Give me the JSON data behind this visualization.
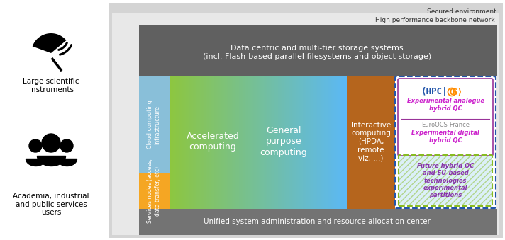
{
  "fig_width": 7.12,
  "fig_height": 3.39,
  "secured_env_text": "Secured environment",
  "backbone_text": "High performance backbone network",
  "storage_text": "Data centric and multi-tier storage systems\n(incl. Flash-based parallel filesystems and object storage)",
  "admin_text": "Unified system administration and resource allocation center",
  "cloud_text": "Cloud computing\ninfrastructure",
  "services_text": "Services nodes (access,\ndata transfer, etc)",
  "accel_text": "Accelerated\ncomputing",
  "general_text": "General\npurpose\ncomputing",
  "interactive_text": "Interactive\ncomputing\n(HPDA,\nremote\nviz, ...)",
  "hpcqs_sub1": "Experimental analogue\nhybrid QC",
  "hpcqs_sub2": "EuroQCS-France",
  "hpcqs_sub3": "Experimental digital\nhybrid QC",
  "future_text": "Future hybrid QC\nand EU-based\ntechnologies\nexperimental\npartitions",
  "icon_satellite_label": "Large scientific\ninstruments",
  "icon_people_label": "Academia, industrial\nand public services\nusers",
  "outer_gray": "#d4d4d4",
  "inner_gray": "#e8e8e8",
  "storage_gray": "#606060",
  "admin_gray": "#737373",
  "cloud_blue": "#89BFD9",
  "services_orange": "#F5A623",
  "interactive_brown": "#B5651D",
  "grad_green": [
    141,
    198,
    63
  ],
  "grad_blue": [
    91,
    184,
    245
  ],
  "hpcqs_blue": "#2255AA",
  "hpcqs_orange": "#FF8C00",
  "hpcqs_purple_border": "#993399",
  "future_green_border": "#88BB22",
  "future_purple": "#8833AA",
  "future_bg": "#DCF0F8",
  "pink_text": "#CC22CC"
}
